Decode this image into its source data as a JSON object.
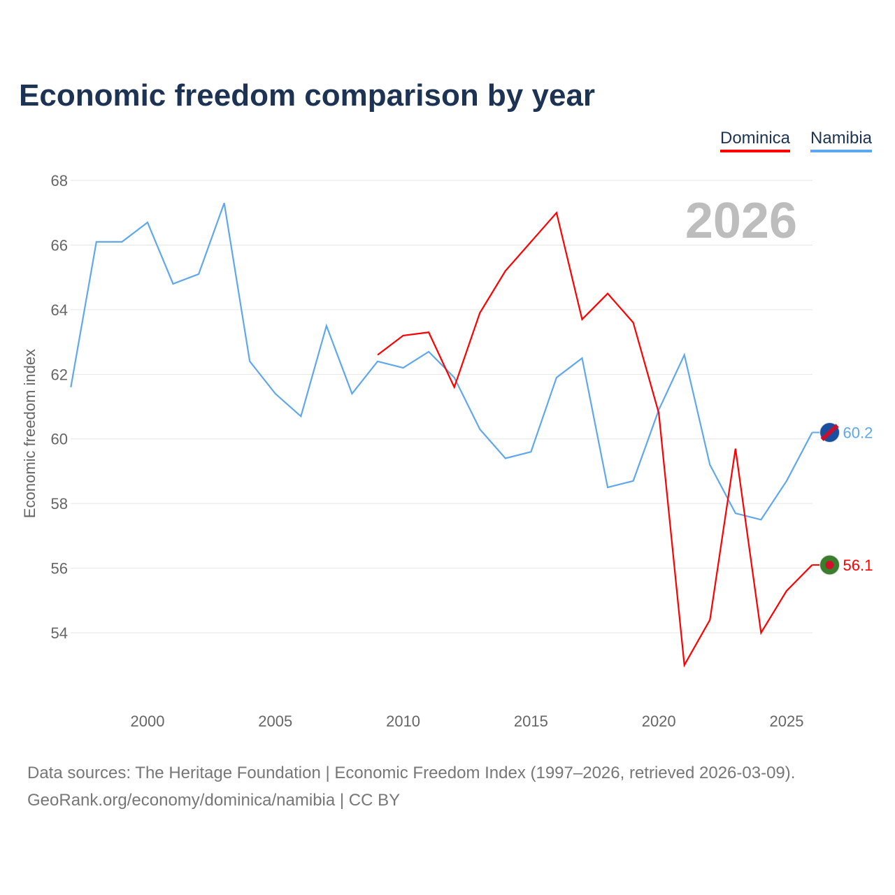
{
  "title": "Economic freedom comparison by year",
  "footer": {
    "line1": "Data sources: The Heritage Foundation | Economic Freedom Index (1997–2026, retrieved 2026-03-09).",
    "line2": "GeoRank.org/economy/dominica/namibia | CC BY"
  },
  "chart_data": {
    "type": "line",
    "title": "Economic freedom comparison by year",
    "ylabel": "Economic freedom index",
    "xlabel": "",
    "year_label": "2026",
    "xlim": [
      1997,
      2026
    ],
    "ylim": [
      52,
      68
    ],
    "xticks": [
      2000,
      2005,
      2010,
      2015,
      2020,
      2025
    ],
    "yticks": [
      54,
      56,
      58,
      60,
      62,
      64,
      66,
      68
    ],
    "legend_position": "top-right",
    "series": [
      {
        "name": "Dominica",
        "color": "#ff0000",
        "end_label": "56.1",
        "x": [
          2009,
          2010,
          2011,
          2012,
          2013,
          2014,
          2015,
          2016,
          2017,
          2018,
          2019,
          2020,
          2021,
          2022,
          2023,
          2024,
          2025,
          2026
        ],
        "values": [
          62.6,
          63.2,
          63.3,
          61.6,
          63.9,
          65.2,
          66.1,
          67.0,
          63.7,
          64.5,
          63.6,
          60.8,
          53.0,
          54.4,
          59.7,
          54.0,
          55.3,
          56.1
        ]
      },
      {
        "name": "Namibia",
        "color": "#5fa8ee",
        "end_label": "60.2",
        "x": [
          1997,
          1998,
          1999,
          2000,
          2001,
          2002,
          2003,
          2004,
          2005,
          2006,
          2007,
          2008,
          2009,
          2010,
          2011,
          2012,
          2013,
          2014,
          2015,
          2016,
          2017,
          2018,
          2019,
          2020,
          2021,
          2022,
          2023,
          2024,
          2025,
          2026
        ],
        "values": [
          61.6,
          66.1,
          66.1,
          66.7,
          64.8,
          65.1,
          67.3,
          62.4,
          61.4,
          60.7,
          63.5,
          61.4,
          62.4,
          62.2,
          62.7,
          61.9,
          60.3,
          59.4,
          59.6,
          61.9,
          62.5,
          58.5,
          58.7,
          60.9,
          62.6,
          59.2,
          57.7,
          57.5,
          58.7,
          60.2
        ]
      }
    ]
  }
}
